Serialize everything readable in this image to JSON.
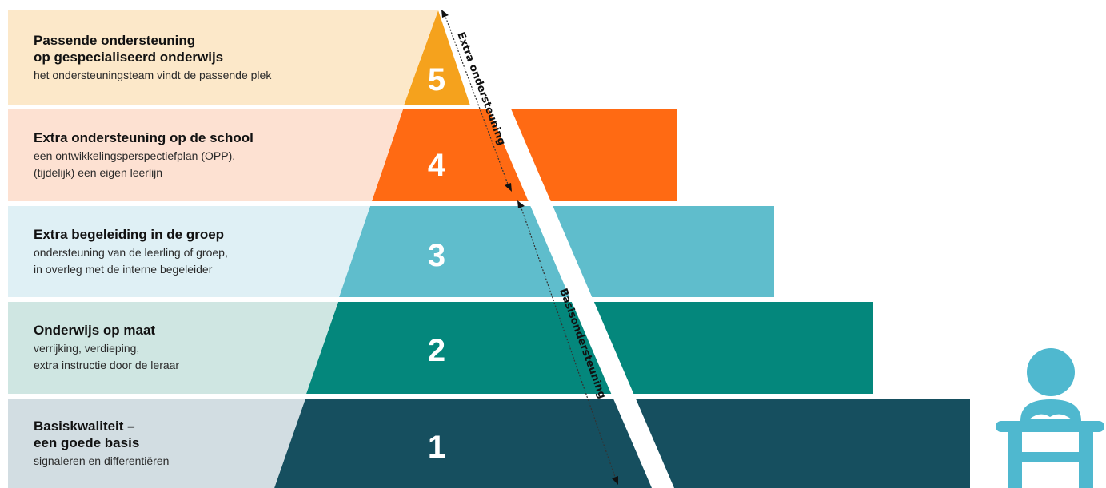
{
  "levels": [
    {
      "number": "5",
      "title_lines": [
        "Passende ondersteuning",
        "op gespecialiseerd onderwijs"
      ],
      "subtitle_lines": [
        "het ondersteuningsteam vindt de passende plek"
      ],
      "panel_color": "#fce8c9",
      "block_color": "#f5a21d"
    },
    {
      "number": "4",
      "title_lines": [
        "Extra ondersteuning op de school"
      ],
      "subtitle_lines": [
        "een ontwikkelingsperspectiefplan (OPP),",
        "(tijdelijk) een eigen leerlijn"
      ],
      "panel_color": "#fde1d2",
      "block_color": "#ff6a13"
    },
    {
      "number": "3",
      "title_lines": [
        "Extra begeleiding in de groep"
      ],
      "subtitle_lines": [
        "ondersteuning van de leerling of groep,",
        "in overleg met de interne begeleider"
      ],
      "panel_color": "#dff0f5",
      "block_color": "#5fbdcc"
    },
    {
      "number": "2",
      "title_lines": [
        "Onderwijs op maat"
      ],
      "subtitle_lines": [
        "verrijking, verdieping,",
        "extra instructie door de leraar"
      ],
      "panel_color": "#cfe6e2",
      "block_color": "#04877c"
    },
    {
      "number": "1",
      "title_lines": [
        "Basiskwaliteit –",
        "een goede basis"
      ],
      "subtitle_lines": [
        "signaleren en differentiëren"
      ],
      "panel_color": "#d2dde2",
      "block_color": "#164f5f"
    }
  ],
  "arrows": {
    "upper_label": "Extra ondersteuning",
    "lower_label": "Basisondersteuning"
  },
  "icons": {
    "student": "student-at-desk-icon",
    "student_color": "#4fb8cf"
  }
}
